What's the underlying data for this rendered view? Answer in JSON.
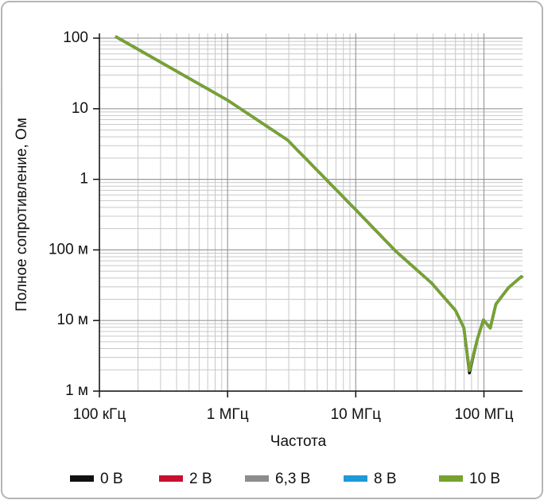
{
  "chart_data": {
    "type": "line",
    "x_label": "Частота",
    "y_label": "Полное сопротивление, Ом",
    "x_log": true,
    "y_log": true,
    "grid": true,
    "minor_grid": true,
    "legend": "bottom",
    "xlim": [
      100000,
      200000000
    ],
    "ylim": [
      0.001,
      100
    ],
    "xticks": [
      {
        "value": 100000,
        "label": "100 кГц"
      },
      {
        "value": 1000000,
        "label": "1 МГц"
      },
      {
        "value": 10000000,
        "label": "10 МГц"
      },
      {
        "value": 100000000,
        "label": "100 МГц"
      }
    ],
    "yticks": [
      {
        "value": 0.001,
        "label": "1 м"
      },
      {
        "value": 0.01,
        "label": "10 м"
      },
      {
        "value": 0.1,
        "label": "100 м"
      },
      1,
      10,
      100
    ],
    "x": [
      133000,
      1000000,
      2940000,
      10000000,
      20500000,
      39000000,
      60000000,
      69700000,
      77000000,
      89000000,
      99000000,
      112000000,
      124000000,
      155000000,
      196000000,
      200000000
    ],
    "series": [
      {
        "name": "0 В",
        "color": "#111111",
        "values": [
          106,
          13.2,
          3.6,
          0.37,
          0.096,
          0.034,
          0.0139,
          0.0079,
          0.0018,
          0.0055,
          0.0102,
          0.0078,
          0.017,
          0.029,
          0.042,
          0.04
        ]
      },
      {
        "name": "2 В",
        "color": "#c8102e",
        "values": [
          106,
          13.2,
          3.6,
          0.37,
          0.096,
          0.034,
          0.0139,
          0.0079,
          0.00195,
          0.0055,
          0.0102,
          0.0078,
          0.017,
          0.029,
          0.042,
          0.04
        ]
      },
      {
        "name": "6,3 В",
        "color": "#8c8c8c",
        "values": [
          106,
          13.2,
          3.6,
          0.37,
          0.096,
          0.034,
          0.0139,
          0.0079,
          0.00195,
          0.0055,
          0.0102,
          0.0078,
          0.017,
          0.029,
          0.042,
          0.04
        ]
      },
      {
        "name": "8 В",
        "color": "#1e9ad6",
        "values": [
          106,
          13.2,
          3.6,
          0.37,
          0.096,
          0.034,
          0.0139,
          0.0079,
          0.00195,
          0.0055,
          0.0102,
          0.0078,
          0.017,
          0.029,
          0.042,
          0.04
        ]
      },
      {
        "name": "10 В",
        "color": "#78a22f",
        "values": [
          106,
          13.2,
          3.6,
          0.37,
          0.096,
          0.034,
          0.0139,
          0.0079,
          0.00195,
          0.0055,
          0.0102,
          0.0078,
          0.017,
          0.029,
          0.042,
          0.04
        ]
      }
    ]
  }
}
